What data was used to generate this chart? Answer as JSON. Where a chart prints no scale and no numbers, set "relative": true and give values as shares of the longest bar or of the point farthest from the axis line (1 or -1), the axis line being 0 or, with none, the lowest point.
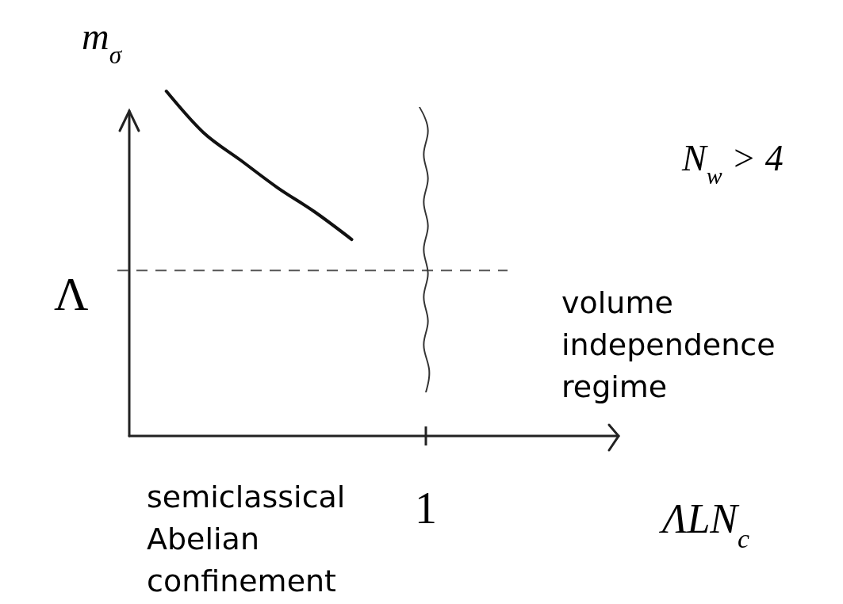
{
  "chart_data": {
    "type": "line",
    "relative": true,
    "ylabel": "m$_{σ}$",
    "xlabel": "ΛLN$_{c}$",
    "categories": [
      null,
      null,
      null,
      null,
      null,
      null,
      null,
      null,
      null,
      null,
      null,
      null,
      null
    ],
    "series": [
      {
        "color": "#111111",
        "values": [
          null,
          1,
          0.88,
          0.8,
          0.72,
          0.65,
          0.57,
          null,
          null,
          null,
          null,
          null,
          null
        ]
      }
    ],
    "ref_lines": [
      {
        "axis": "y",
        "value": 0.48,
        "label": "Λ",
        "line_style": "dashed",
        "color": "#555555"
      },
      {
        "axis": "x",
        "label": "1",
        "color": "#333333"
      }
    ],
    "annotations": [
      "N$_{w}$ > 4",
      "volume independence regime",
      "semiclassical Abelian confinement"
    ],
    "marker": "none",
    "line_style": "solid"
  }
}
